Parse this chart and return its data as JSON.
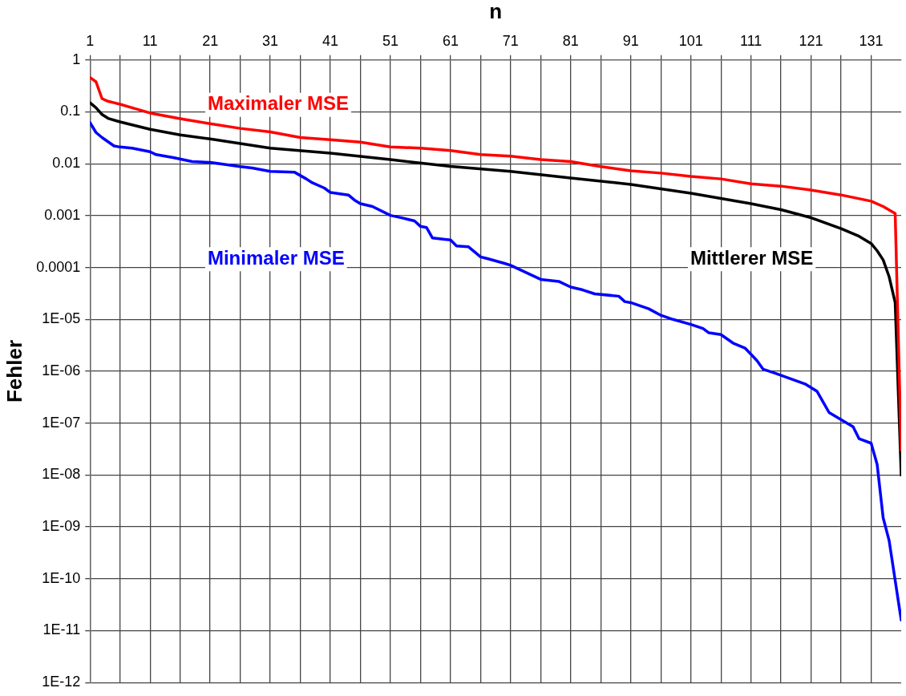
{
  "chart_data": {
    "type": "line",
    "xlabel": "n",
    "ylabel": "Fehler",
    "log": "y",
    "grid": true,
    "legend": false,
    "marker": "none",
    "line_style": "solid",
    "xlim": [
      1,
      136
    ],
    "xticks": [
      1,
      {
        "value": 6,
        "label": null
      },
      11,
      {
        "value": 16,
        "label": null
      },
      21,
      {
        "value": 26,
        "label": null
      },
      31,
      {
        "value": 36,
        "label": null
      },
      41,
      {
        "value": 46,
        "label": null
      },
      51,
      {
        "value": 56,
        "label": null
      },
      61,
      {
        "value": 66,
        "label": null
      },
      71,
      {
        "value": 76,
        "label": null
      },
      81,
      {
        "value": 86,
        "label": null
      },
      91,
      {
        "value": 96,
        "label": null
      },
      101,
      {
        "value": 106,
        "label": null
      },
      111,
      {
        "value": 116,
        "label": null
      },
      121,
      {
        "value": 126,
        "label": null
      },
      131
    ],
    "ylim": [
      1e-12,
      1
    ],
    "yticks": [
      {
        "value": 1e-12,
        "label": "1E-12"
      },
      {
        "value": 1e-11,
        "label": "1E-11"
      },
      {
        "value": 1e-10,
        "label": "1E-10"
      },
      {
        "value": 1e-09,
        "label": "1E-09"
      },
      {
        "value": 1e-08,
        "label": "1E-08"
      },
      {
        "value": 1e-07,
        "label": "1E-07"
      },
      {
        "value": 1e-06,
        "label": "1E-06"
      },
      {
        "value": 1e-05,
        "label": "1E-05"
      },
      0.0001,
      0.001,
      0.01,
      0.1,
      1
    ],
    "series": [
      {
        "name": "Maximaler MSE",
        "color": "#ff0000",
        "x": [
          1,
          2,
          3,
          4,
          5,
          6,
          8,
          11,
          16,
          21,
          26,
          31,
          36,
          41,
          46,
          51,
          56,
          61,
          66,
          71,
          76,
          81,
          86,
          91,
          96,
          101,
          106,
          111,
          116,
          121,
          126,
          131,
          133,
          135,
          136
        ],
        "values": [
          0.46,
          0.38,
          0.18,
          0.16,
          0.15,
          0.14,
          0.12,
          0.095,
          0.074,
          0.059,
          0.048,
          0.041,
          0.032,
          0.029,
          0.026,
          0.021,
          0.02,
          0.018,
          0.015,
          0.014,
          0.012,
          0.011,
          0.0088,
          0.0073,
          0.0066,
          0.0057,
          0.0051,
          0.0041,
          0.0037,
          0.0031,
          0.0025,
          0.0019,
          0.0015,
          0.0011,
          3e-08
        ]
      },
      {
        "name": "Mittlerer MSE",
        "color": "#000000",
        "x": [
          1,
          2,
          3,
          4,
          6,
          11,
          16,
          21,
          31,
          41,
          51,
          61,
          71,
          81,
          91,
          101,
          111,
          116,
          121,
          126,
          129,
          131,
          132,
          133,
          134,
          135,
          136
        ],
        "values": [
          0.15,
          0.12,
          0.089,
          0.075,
          0.064,
          0.046,
          0.036,
          0.03,
          0.02,
          0.016,
          0.012,
          0.0089,
          0.0071,
          0.0053,
          0.004,
          0.0027,
          0.0017,
          0.0013,
          0.00091,
          0.00056,
          0.0004,
          0.00029,
          0.00021,
          0.00014,
          6.6e-05,
          2.1e-05,
          1e-08
        ]
      },
      {
        "name": "Minimaler MSE",
        "color": "#0000ff",
        "x": [
          1,
          2,
          3,
          5,
          6,
          8,
          10,
          11,
          12,
          15,
          18,
          21,
          26,
          28,
          31,
          35,
          37,
          38,
          40,
          41,
          44,
          45,
          46,
          48,
          51,
          53,
          55,
          56,
          57,
          58,
          60,
          61,
          62,
          64,
          66,
          67,
          70,
          71,
          73,
          76,
          79,
          81,
          83,
          85,
          89,
          90,
          91,
          94,
          96,
          98,
          101,
          103,
          104,
          106,
          108,
          110,
          112,
          113,
          115,
          120,
          122,
          124,
          128,
          129,
          131,
          132,
          133,
          134,
          136
        ],
        "values": [
          0.062,
          0.04,
          0.032,
          0.022,
          0.021,
          0.02,
          0.018,
          0.017,
          0.015,
          0.013,
          0.011,
          0.0106,
          0.0088,
          0.0083,
          0.0071,
          0.0069,
          0.0051,
          0.0043,
          0.0034,
          0.0028,
          0.0025,
          0.002,
          0.0017,
          0.0015,
          0.00101,
          0.0009,
          0.00079,
          0.00062,
          0.00059,
          0.00037,
          0.00035,
          0.00034,
          0.00026,
          0.00025,
          0.00016,
          0.00015,
          0.00012,
          0.00011,
          8.6e-05,
          5.9e-05,
          5.4e-05,
          4.2e-05,
          3.7e-05,
          3.1e-05,
          2.8e-05,
          2.2e-05,
          2.1e-05,
          1.6e-05,
          1.2e-05,
          1e-05,
          8e-06,
          6.7e-06,
          5.5e-06,
          5.1e-06,
          3.5e-06,
          2.8e-06,
          1.6e-06,
          1.1e-06,
          9.2e-07,
          5.7e-07,
          4.1e-07,
          1.6e-07,
          8.5e-08,
          5e-08,
          4.1e-08,
          1.6e-08,
          1.5e-09,
          5.4e-10,
          1.6e-11
        ]
      }
    ]
  }
}
